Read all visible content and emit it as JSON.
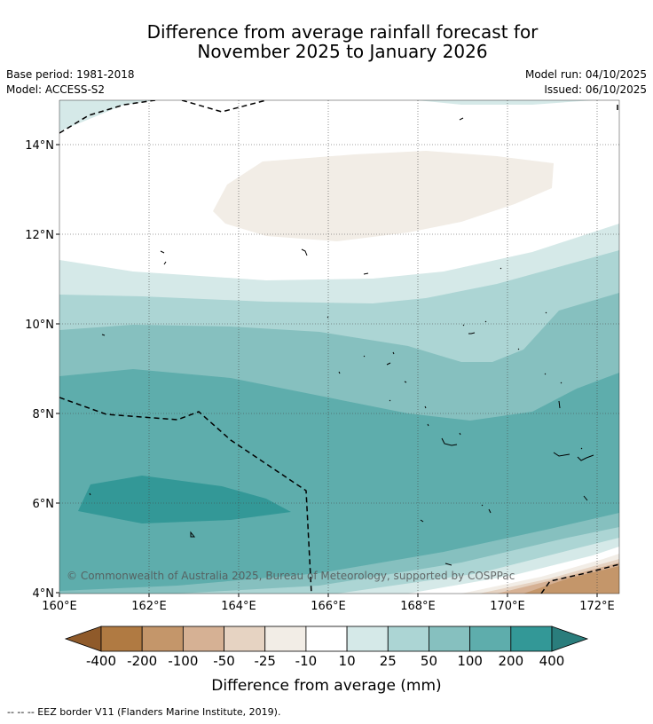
{
  "title_line1": "Difference from average rainfall forecast for",
  "title_line2": "November 2025 to January 2026",
  "base_period": "Base period: 1981-2018",
  "model": "Model: ACCESS-S2",
  "model_run": "Model run: 04/10/2025",
  "issued": "Issued: 06/10/2025",
  "copyright": "© Commonwealth of Australia 2025, Bureau of Meteorology, supported by COSPPac",
  "lat_labels": [
    "14°N",
    "12°N",
    "10°N",
    "8°N",
    "6°N",
    "4°N"
  ],
  "lon_labels": [
    "160°E",
    "162°E",
    "164°E",
    "166°E",
    "168°E",
    "170°E",
    "172°E"
  ],
  "colorbar": {
    "title": "Difference from average (mm)",
    "tick_labels": [
      "-400",
      "-200",
      "-100",
      "-50",
      "-25",
      "-10",
      "10",
      "25",
      "50",
      "100",
      "200",
      "400"
    ],
    "colors": [
      "#8f5a2a",
      "#b07a42",
      "#c4966a",
      "#d6b194",
      "#e6d3c2",
      "#f2ede6",
      "#ffffff",
      "#d5e9e8",
      "#acd5d4",
      "#86c0bf",
      "#5eadac",
      "#339897",
      "#2a7d7c"
    ]
  },
  "footer": "--  --  -- EEZ border V11 (Flanders Marine Institute, 2019)."
}
